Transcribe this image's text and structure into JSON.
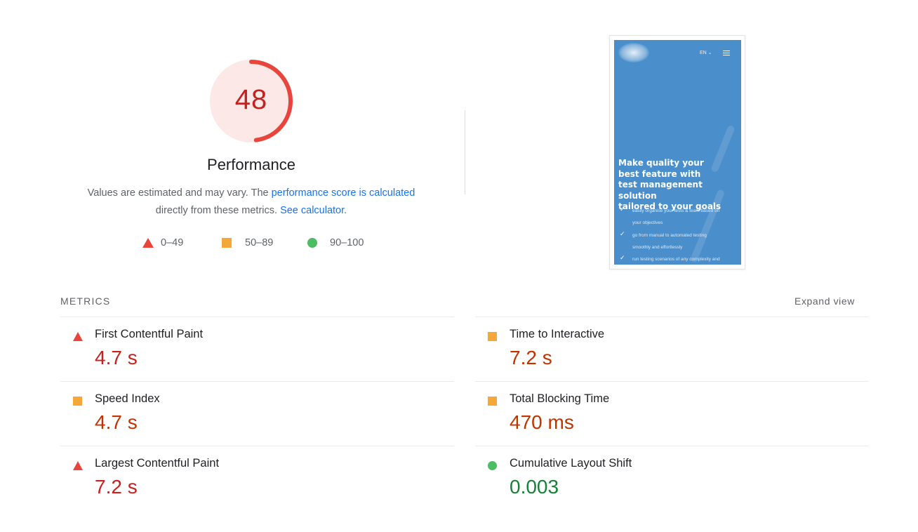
{
  "gauge": {
    "score": "48",
    "score_fraction": 0.48,
    "title": "Performance"
  },
  "description": {
    "text_before": "Values are estimated and may vary. The ",
    "link1": "performance score is calculated",
    "text_middle": " directly from these metrics. ",
    "link2": "See calculator",
    "text_after": "."
  },
  "legend": [
    {
      "icon": "triangle",
      "color": "#e8453c",
      "range": "0–49"
    },
    {
      "icon": "square",
      "color": "#f4a83a",
      "range": "50–89"
    },
    {
      "icon": "circle",
      "color": "#4cbd62",
      "range": "90–100"
    }
  ],
  "screenshot": {
    "lang": "EN ⌄",
    "headline_lines": [
      "Make quality your",
      "best feature with",
      "test management solution",
      "tailored to your goals"
    ],
    "items": [
      "easily organise your tests & team based on",
      "your objectives",
      "go from manual to automated testing",
      "smoothly and effortlessly",
      "run testing scenarios of any complexity and"
    ]
  },
  "metrics_header": {
    "label": "METRICS",
    "expand": "Expand view"
  },
  "metrics": [
    {
      "name": "First Contentful Paint",
      "value": "4.7 s",
      "status": "fail",
      "icon": "red-triangle-icon"
    },
    {
      "name": "Time to Interactive",
      "value": "7.2 s",
      "status": "average",
      "icon": "orange-square-icon"
    },
    {
      "name": "Speed Index",
      "value": "4.7 s",
      "status": "average",
      "icon": "orange-square-icon"
    },
    {
      "name": "Total Blocking Time",
      "value": "470 ms",
      "status": "average",
      "icon": "orange-square-icon"
    },
    {
      "name": "Largest Contentful Paint",
      "value": "7.2 s",
      "status": "fail",
      "icon": "red-triangle-icon"
    },
    {
      "name": "Cumulative Layout Shift",
      "value": "0.003",
      "status": "pass",
      "icon": "green-circle-icon"
    }
  ],
  "colors": {
    "fail": "#c5221f",
    "average": "#c33300",
    "pass": "#188038",
    "gauge_bg": "#fce8e6",
    "gauge_arc": "#e8453c",
    "link": "#1a73e8"
  }
}
